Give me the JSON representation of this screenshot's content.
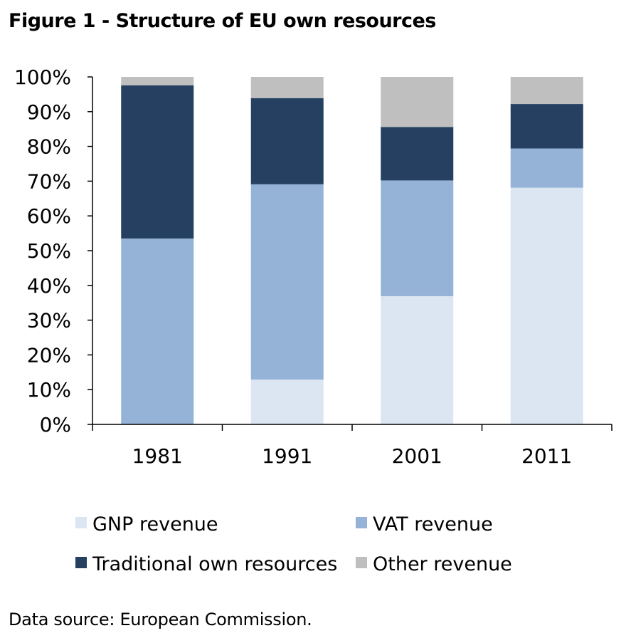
{
  "chart_data": {
    "type": "bar",
    "stacked": true,
    "title": "Figure 1 - Structure of EU own resources",
    "categories": [
      "1981",
      "1991",
      "2001",
      "2011"
    ],
    "ylim": [
      0,
      100
    ],
    "yticks": [
      "0%",
      "10%",
      "20%",
      "30%",
      "40%",
      "50%",
      "60%",
      "70%",
      "80%",
      "90%",
      "100%"
    ],
    "grid": false,
    "legend_position": "bottom",
    "series": [
      {
        "name": "GNP revenue",
        "color": "#dce6f2",
        "values": [
          0,
          12.9,
          36.9,
          68.1
        ]
      },
      {
        "name": "VAT revenue",
        "color": "#95b3d7",
        "values": [
          53.5,
          56.2,
          33.3,
          11.3
        ]
      },
      {
        "name": "Traditional own resources",
        "color": "#254061",
        "values": [
          44.1,
          24.8,
          15.4,
          12.8
        ]
      },
      {
        "name": "Other revenue",
        "color": "#bfbfbf",
        "values": [
          2.4,
          6.1,
          14.4,
          7.8
        ]
      }
    ],
    "source": "Data source: European Commission."
  }
}
